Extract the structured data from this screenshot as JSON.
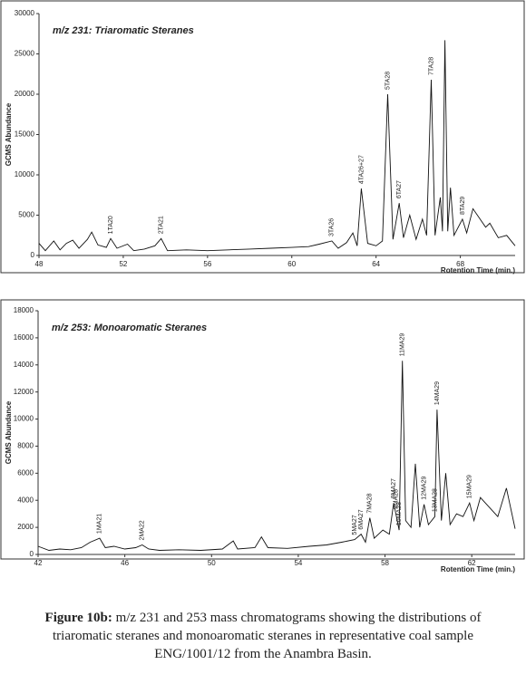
{
  "chart_data": [
    {
      "type": "line",
      "title": "m/z 231: Triaromatic Steranes",
      "xlabel": "Rotention Time (min.)",
      "ylabel": "GCMS Abundance",
      "x": [
        48,
        48.3,
        48.7,
        49,
        49.3,
        49.6,
        49.9,
        50.3,
        50.5,
        50.8,
        51.2,
        51.4,
        51.7,
        52.2,
        52.5,
        53,
        53.5,
        53.8,
        54.1,
        55,
        56,
        57,
        58,
        59,
        60,
        60.8,
        61.3,
        61.9,
        62.2,
        62.6,
        62.9,
        63.1,
        63.3,
        63.6,
        64,
        64.3,
        64.55,
        64.8,
        65.1,
        65.3,
        65.6,
        65.9,
        66.2,
        66.4,
        66.62,
        66.8,
        67.05,
        67.15,
        67.27,
        67.4,
        67.53,
        67.7,
        68.1,
        68.3,
        68.6,
        69.2,
        69.4,
        69.8,
        70.2,
        70.6
      ],
      "series": [
        {
          "color": "#111111",
          "values": [
            1500,
            600,
            1800,
            700,
            1500,
            1900,
            900,
            2000,
            2900,
            1300,
            1000,
            2100,
            900,
            1400,
            600,
            800,
            1200,
            2100,
            600,
            700,
            600,
            700,
            800,
            900,
            1000,
            1100,
            1400,
            1800,
            900,
            1600,
            2800,
            1200,
            8300,
            1500,
            1200,
            1800,
            20000,
            2000,
            6500,
            2200,
            5000,
            2000,
            4500,
            2500,
            21800,
            2500,
            7200,
            3000,
            26700,
            3000,
            8400,
            2500,
            4500,
            2800,
            5800,
            3500,
            4000,
            2200,
            2500,
            1200
          ]
        }
      ],
      "xlim": [
        48,
        70.6
      ],
      "ylim": [
        0,
        30000
      ],
      "xticks": [
        48,
        52,
        56,
        60,
        64,
        68
      ],
      "yticks": [
        0,
        5000,
        10000,
        15000,
        20000,
        25000,
        30000
      ],
      "annotations": [
        {
          "text": "1TA20",
          "x": 51.4,
          "y": 2100
        },
        {
          "text": "2TA21",
          "x": 53.8,
          "y": 2100
        },
        {
          "text": "3TA26",
          "x": 61.9,
          "y": 1800
        },
        {
          "text": "4TA26+27",
          "x": 63.3,
          "y": 8300
        },
        {
          "text": "5TA28",
          "x": 64.55,
          "y": 20000
        },
        {
          "text": "6TA27",
          "x": 65.1,
          "y": 6500
        },
        {
          "text": "7TA28",
          "x": 66.62,
          "y": 21800
        },
        {
          "text": "8TA29",
          "x": 68.1,
          "y": 4500
        }
      ]
    },
    {
      "type": "line",
      "title": "m/z 253: Monoaromatic Steranes",
      "xlabel": "Rotention Time (min.)",
      "ylabel": "GCMS Abundance",
      "x": [
        42,
        42.5,
        43,
        43.5,
        44,
        44.4,
        44.84,
        45.1,
        45.5,
        46,
        46.5,
        46.8,
        47.1,
        47.6,
        48.5,
        49.5,
        50.5,
        51,
        51.2,
        52,
        52.3,
        52.6,
        53.5,
        54.5,
        55.3,
        56,
        56.6,
        56.9,
        57.1,
        57.3,
        57.5,
        57.9,
        58.2,
        58.4,
        58.5,
        58.65,
        58.8,
        58.95,
        59.2,
        59.4,
        59.6,
        59.8,
        60,
        60.3,
        60.4,
        60.6,
        60.8,
        61,
        61.3,
        61.6,
        61.9,
        62.1,
        62.4,
        62.8,
        63.2,
        63.6,
        64
      ],
      "series": [
        {
          "color": "#111111",
          "values": [
            600,
            300,
            400,
            350,
            500,
            900,
            1200,
            500,
            600,
            400,
            500,
            700,
            400,
            300,
            350,
            300,
            400,
            1000,
            400,
            500,
            1300,
            500,
            450,
            600,
            700,
            900,
            1100,
            1500,
            900,
            2700,
            1200,
            1800,
            1500,
            3800,
            3000,
            1800,
            14300,
            2500,
            2000,
            6700,
            2000,
            3700,
            2200,
            2800,
            10700,
            2500,
            6000,
            2200,
            3000,
            2800,
            3800,
            2500,
            4200,
            3500,
            2800,
            4900,
            1900
          ]
        }
      ],
      "xlim": [
        42,
        64
      ],
      "ylim": [
        0,
        18000
      ],
      "xticks": [
        42,
        46,
        50,
        54,
        58,
        62
      ],
      "yticks": [
        0,
        2000,
        4000,
        6000,
        8000,
        10000,
        12000,
        14000,
        16000,
        18000
      ],
      "annotations": [
        {
          "text": "1MA21",
          "x": 44.84,
          "y": 1200
        },
        {
          "text": "2MA22",
          "x": 46.8,
          "y": 700
        },
        {
          "text": "5MA27",
          "x": 56.6,
          "y": 1100
        },
        {
          "text": "6MA27",
          "x": 56.9,
          "y": 1500
        },
        {
          "text": "7MA28",
          "x": 57.3,
          "y": 2700
        },
        {
          "text": "8MA27",
          "x": 58.4,
          "y": 3800
        },
        {
          "text": "9MA28",
          "x": 58.5,
          "y": 3000
        },
        {
          "text": "10MA28",
          "x": 58.65,
          "y": 1800
        },
        {
          "text": "11MA29",
          "x": 58.8,
          "y": 14300
        },
        {
          "text": "12MA29",
          "x": 59.8,
          "y": 3700
        },
        {
          "text": "13MA28",
          "x": 60.3,
          "y": 2800
        },
        {
          "text": "14MA29",
          "x": 60.4,
          "y": 10700
        },
        {
          "text": "15MA29",
          "x": 61.9,
          "y": 3800
        }
      ]
    }
  ],
  "caption": {
    "label": "Figure 10b:",
    "text": "m/z 231 and 253 mass chromatograms showing the distributions of triaromatic steranes and monoaromatic steranes in representative coal sample ENG/1001/12 from the Anambra Basin."
  }
}
